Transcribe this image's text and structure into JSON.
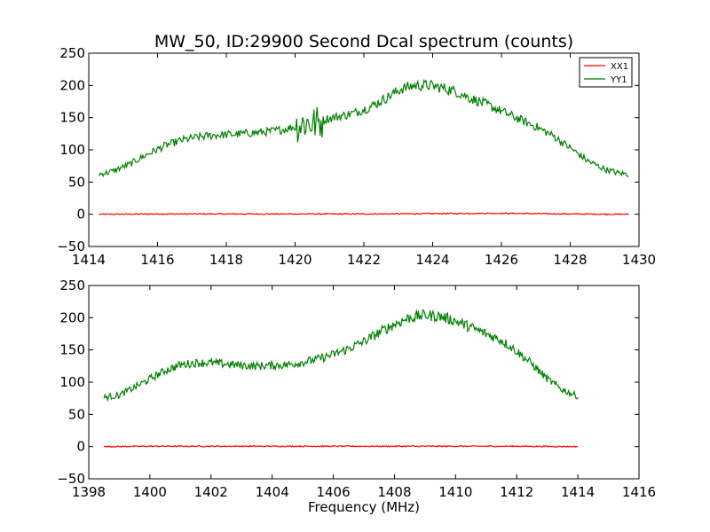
{
  "chart_data": [
    {
      "type": "line",
      "title": "MW_50, ID:29900 Second Dcal spectrum (counts)",
      "xlabel": "",
      "ylabel": "",
      "xlim": [
        1414,
        1430
      ],
      "ylim": [
        -50,
        250
      ],
      "xticks": [
        1414,
        1416,
        1418,
        1420,
        1422,
        1424,
        1426,
        1428,
        1430
      ],
      "yticks": [
        -50,
        0,
        50,
        100,
        150,
        200,
        250
      ],
      "grid": false,
      "legend": "top-right",
      "series": [
        {
          "name": "XX1",
          "color": "#ff0000",
          "x": [
            1414.3,
            1416,
            1418,
            1420,
            1422,
            1424,
            1426,
            1428,
            1429.7
          ],
          "y": [
            0,
            0.5,
            0.5,
            0.5,
            0.5,
            1,
            1.5,
            0.5,
            0
          ]
        },
        {
          "name": "YY1",
          "color": "#008000",
          "x": [
            1414.3,
            1414.7,
            1415.2,
            1415.7,
            1416.2,
            1416.7,
            1417.2,
            1417.7,
            1418.2,
            1418.7,
            1419.2,
            1419.7,
            1420.0,
            1420.3,
            1420.6,
            1420.9,
            1421.3,
            1421.7,
            1422.2,
            1422.7,
            1423.1,
            1423.5,
            1423.9,
            1424.3,
            1424.7,
            1425.1,
            1425.5,
            1426.0,
            1426.5,
            1427.0,
            1427.5,
            1428.0,
            1428.5,
            1429.0,
            1429.4,
            1429.7
          ],
          "y": [
            62,
            67,
            78,
            93,
            106,
            115,
            120,
            123,
            124,
            126,
            128,
            132,
            136,
            142,
            141,
            148,
            152,
            157,
            167,
            182,
            195,
            200,
            200,
            196,
            190,
            180,
            172,
            160,
            148,
            136,
            122,
            103,
            83,
            70,
            64,
            62
          ]
        }
      ]
    },
    {
      "type": "line",
      "title": "",
      "xlabel": "Frequency (MHz)",
      "ylabel": "",
      "xlim": [
        1398,
        1416
      ],
      "ylim": [
        -50,
        250
      ],
      "xticks": [
        1398,
        1400,
        1402,
        1404,
        1406,
        1408,
        1410,
        1412,
        1414,
        1416
      ],
      "yticks": [
        -50,
        0,
        50,
        100,
        150,
        200,
        250
      ],
      "grid": false,
      "series": [
        {
          "name": "XX1",
          "color": "#ff0000",
          "x": [
            1398.5,
            1400,
            1402,
            1404,
            1406,
            1408,
            1410,
            1412,
            1414
          ],
          "y": [
            0,
            0.5,
            0.5,
            0.5,
            0.5,
            0.5,
            0.5,
            0.5,
            0
          ]
        },
        {
          "name": "YY1",
          "color": "#008000",
          "x": [
            1398.5,
            1399.0,
            1399.5,
            1400.0,
            1400.5,
            1401.0,
            1401.5,
            1402.0,
            1402.5,
            1403.0,
            1403.5,
            1404.0,
            1404.5,
            1405.0,
            1405.5,
            1406.0,
            1406.5,
            1407.0,
            1407.5,
            1408.0,
            1408.5,
            1409.0,
            1409.5,
            1410.0,
            1410.5,
            1411.0,
            1411.5,
            1412.0,
            1412.5,
            1413.0,
            1413.5,
            1414.0
          ],
          "y": [
            76,
            80,
            92,
            105,
            118,
            127,
            130,
            130,
            128,
            126,
            125,
            126,
            127,
            131,
            136,
            143,
            152,
            163,
            177,
            190,
            200,
            204,
            202,
            195,
            185,
            175,
            165,
            148,
            128,
            105,
            88,
            78
          ]
        }
      ]
    }
  ]
}
